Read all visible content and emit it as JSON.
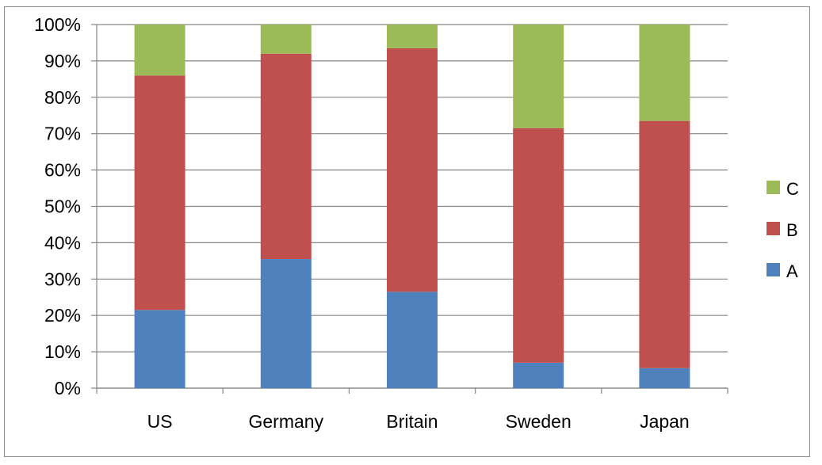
{
  "chart_data": {
    "type": "bar",
    "stacked": true,
    "percent_stacked": true,
    "title": "",
    "xlabel": "",
    "ylabel": "",
    "categories": [
      "US",
      "Germany",
      "Britain",
      "Sweden",
      "Japan"
    ],
    "series": [
      {
        "name": "A",
        "color": "#4f81bd",
        "values": [
          21.5,
          35.5,
          26.5,
          7,
          5.5
        ]
      },
      {
        "name": "B",
        "color": "#c0504d",
        "values": [
          64.5,
          56.5,
          67,
          64.5,
          68
        ]
      },
      {
        "name": "C",
        "color": "#9bbb59",
        "values": [
          14,
          8,
          6.5,
          28.5,
          26.5
        ]
      }
    ],
    "ylim": [
      0,
      100
    ],
    "y_ticks": [
      "0%",
      "10%",
      "20%",
      "30%",
      "40%",
      "50%",
      "60%",
      "70%",
      "80%",
      "90%",
      "100%"
    ],
    "grid": true,
    "legend": {
      "placement": "right",
      "entries": [
        "C",
        "B",
        "A"
      ]
    }
  }
}
